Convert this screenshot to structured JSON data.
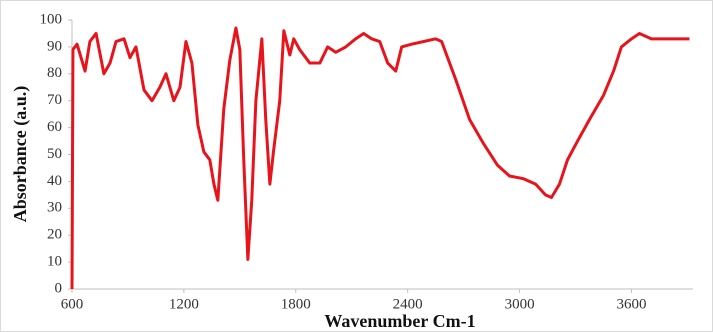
{
  "chart_data": {
    "type": "line",
    "x_label": "Wavenumber Cm-1",
    "y_label": "Absorbance (a.u.)",
    "xlim": [
      600,
      3930
    ],
    "xticks": [
      600,
      1200,
      1800,
      2400,
      3000,
      3600
    ],
    "ylim": [
      0,
      100
    ],
    "yticks": [
      0,
      10,
      20,
      30,
      40,
      50,
      60,
      70,
      80,
      90,
      100
    ],
    "grid": false,
    "series": [
      {
        "color": "#e8141b",
        "x": [
          600,
          605,
          627,
          670,
          696,
          729,
          771,
          804,
          836,
          879,
          911,
          943,
          986,
          1029,
          1071,
          1104,
          1146,
          1179,
          1211,
          1243,
          1275,
          1307,
          1339,
          1361,
          1382,
          1414,
          1446,
          1479,
          1500,
          1521,
          1543,
          1564,
          1586,
          1618,
          1639,
          1661,
          1682,
          1714,
          1736,
          1768,
          1789,
          1821,
          1875,
          1929,
          1971,
          2014,
          2068,
          2121,
          2164,
          2207,
          2250,
          2293,
          2336,
          2368,
          2421,
          2486,
          2550,
          2582,
          2657,
          2732,
          2807,
          2882,
          2946,
          3021,
          3086,
          3139,
          3171,
          3214,
          3257,
          3311,
          3375,
          3450,
          3504,
          3546,
          3600,
          3643,
          3707,
          3771,
          3836,
          3879,
          3911
        ],
        "values": [
          0,
          89,
          91,
          81,
          92,
          95,
          80,
          84,
          92,
          93,
          86,
          90,
          74,
          70,
          75,
          80,
          70,
          75,
          92,
          84,
          61,
          51,
          48,
          39,
          33,
          67,
          85,
          97,
          89,
          48,
          11,
          33,
          70,
          93,
          63,
          39,
          52,
          70,
          96,
          87,
          93,
          89,
          84,
          84,
          90,
          88,
          90,
          93,
          95,
          93,
          92,
          84,
          81,
          90,
          91,
          92,
          93,
          92,
          78,
          63,
          54,
          46,
          42,
          41,
          39,
          35,
          34,
          39,
          48,
          55,
          63,
          72,
          81,
          90,
          93,
          95,
          93,
          93,
          93,
          93,
          93
        ]
      }
    ]
  }
}
